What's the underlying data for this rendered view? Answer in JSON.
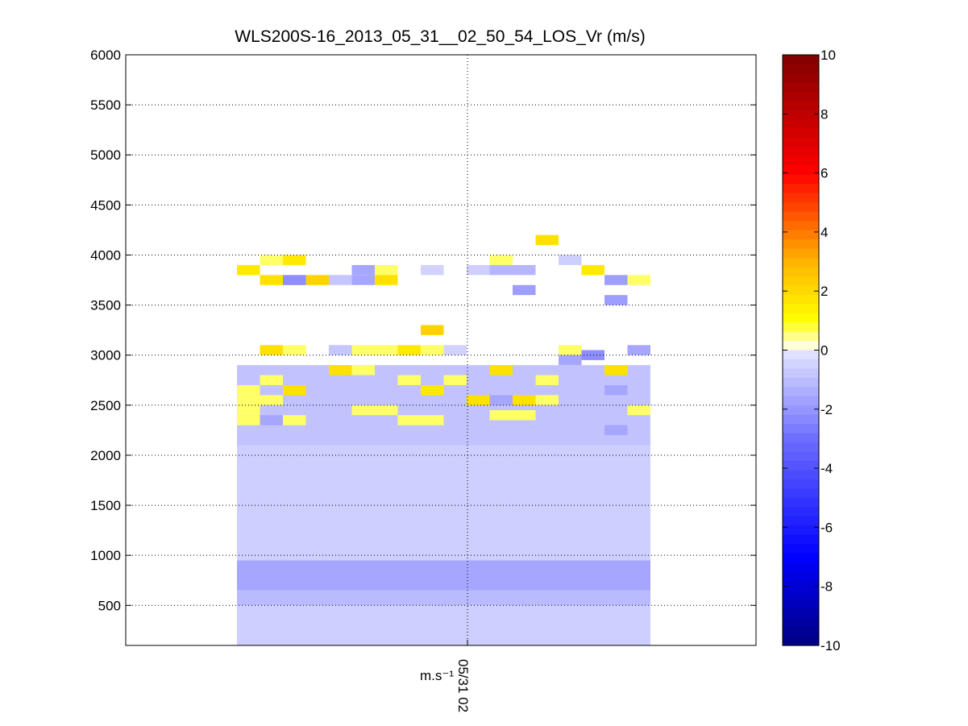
{
  "chart_data": {
    "type": "heatmap",
    "title": "WLS200S-16_2013_05_31__02_50_54_LOS_Vr (m/s)",
    "xlabel": "m.s⁻¹",
    "x_tick_label": "05/31 02",
    "ylabel": "",
    "ylim": [
      100,
      6000
    ],
    "y_ticks": [
      500,
      1000,
      1500,
      2000,
      2500,
      3000,
      3500,
      4000,
      4500,
      5000,
      5500,
      6000
    ],
    "grid": true,
    "colorbar": {
      "colormap": "blue-white-yellow-red",
      "clim": [
        -10,
        10
      ],
      "ticks": [
        -10,
        -8,
        -6,
        -4,
        -2,
        0,
        2,
        4,
        6,
        8,
        10
      ],
      "placement": "right"
    },
    "columns": 18,
    "layers": [
      {
        "from": 100,
        "to": 500,
        "value": -0.6
      },
      {
        "from": 500,
        "to": 650,
        "value": -1.1
      },
      {
        "from": 650,
        "to": 950,
        "value": -1.6
      },
      {
        "from": 950,
        "to": 2100,
        "value": -0.6
      },
      {
        "from": 2100,
        "to": 2900,
        "value": -0.9
      }
    ],
    "cells": [
      {
        "col": 0,
        "z": 3850,
        "value": 1.6
      },
      {
        "col": 2,
        "z": 3950,
        "value": 1.6
      },
      {
        "col": 2,
        "z": 3750,
        "value": 1.8
      },
      {
        "col": 1,
        "z": 3950,
        "value": 0.6
      },
      {
        "col": 1,
        "z": 3750,
        "value": 1.8
      },
      {
        "col": 2,
        "z": 3750,
        "value": -2.2
      },
      {
        "col": 3,
        "z": 3750,
        "value": 2.2
      },
      {
        "col": 4,
        "z": 3750,
        "value": -0.8
      },
      {
        "col": 5,
        "z": 3850,
        "value": -1.6
      },
      {
        "col": 5,
        "z": 3750,
        "value": -1.6
      },
      {
        "col": 6,
        "z": 3850,
        "value": 0.6
      },
      {
        "col": 6,
        "z": 3750,
        "value": 1.8
      },
      {
        "col": 8,
        "z": 3850,
        "value": -0.5
      },
      {
        "col": 10,
        "z": 3850,
        "value": -0.6
      },
      {
        "col": 11,
        "z": 3950,
        "value": 0.6
      },
      {
        "col": 11,
        "z": 3850,
        "value": -1.2
      },
      {
        "col": 12,
        "z": 3850,
        "value": -1.2
      },
      {
        "col": 12,
        "z": 3650,
        "value": -1.8
      },
      {
        "col": 13,
        "z": 4150,
        "value": 1.8
      },
      {
        "col": 14,
        "z": 3950,
        "value": -0.6
      },
      {
        "col": 15,
        "z": 3850,
        "value": 1.6
      },
      {
        "col": 16,
        "z": 3750,
        "value": -1.8
      },
      {
        "col": 16,
        "z": 3550,
        "value": -1.8
      },
      {
        "col": 17,
        "z": 3750,
        "value": 0.6
      },
      {
        "col": 8,
        "z": 3250,
        "value": 2.2
      },
      {
        "col": 1,
        "z": 3050,
        "value": 1.8
      },
      {
        "col": 2,
        "z": 3050,
        "value": 0.6
      },
      {
        "col": 4,
        "z": 3050,
        "value": -0.8
      },
      {
        "col": 5,
        "z": 3050,
        "value": 0.6
      },
      {
        "col": 6,
        "z": 3050,
        "value": 0.6
      },
      {
        "col": 7,
        "z": 3050,
        "value": 1.6
      },
      {
        "col": 8,
        "z": 3050,
        "value": 0.6
      },
      {
        "col": 9,
        "z": 3050,
        "value": -0.5
      },
      {
        "col": 14,
        "z": 3050,
        "value": 0.6
      },
      {
        "col": 15,
        "z": 3000,
        "value": -2.2
      },
      {
        "col": 14,
        "z": 2950,
        "value": -1.6
      },
      {
        "col": 17,
        "z": 3050,
        "value": -1.6
      },
      {
        "col": 1,
        "z": 2750,
        "value": 0.6
      },
      {
        "col": 2,
        "z": 2650,
        "value": 1.8
      },
      {
        "col": 0,
        "z": 2650,
        "value": 0.6
      },
      {
        "col": 0,
        "z": 2550,
        "value": 0.6
      },
      {
        "col": 0,
        "z": 2450,
        "value": 0.6
      },
      {
        "col": 0,
        "z": 2350,
        "value": 0.6
      },
      {
        "col": 1,
        "z": 2550,
        "value": 0.6
      },
      {
        "col": 1,
        "z": 2350,
        "value": -1.6
      },
      {
        "col": 2,
        "z": 2350,
        "value": 0.6
      },
      {
        "col": 4,
        "z": 2850,
        "value": 1.8
      },
      {
        "col": 5,
        "z": 2850,
        "value": 0.6
      },
      {
        "col": 7,
        "z": 2750,
        "value": 0.6
      },
      {
        "col": 8,
        "z": 2650,
        "value": 1.6
      },
      {
        "col": 9,
        "z": 2750,
        "value": 0.6
      },
      {
        "col": 10,
        "z": 2550,
        "value": 1.8
      },
      {
        "col": 11,
        "z": 2850,
        "value": 1.8
      },
      {
        "col": 11,
        "z": 2550,
        "value": -1.6
      },
      {
        "col": 12,
        "z": 2550,
        "value": 1.8
      },
      {
        "col": 13,
        "z": 2750,
        "value": 0.6
      },
      {
        "col": 13,
        "z": 2550,
        "value": 0.6
      },
      {
        "col": 16,
        "z": 2850,
        "value": 1.8
      },
      {
        "col": 17,
        "z": 2450,
        "value": 0.6
      },
      {
        "col": 5,
        "z": 2450,
        "value": 0.6
      },
      {
        "col": 6,
        "z": 2450,
        "value": 0.6
      },
      {
        "col": 7,
        "z": 2350,
        "value": 0.6
      },
      {
        "col": 8,
        "z": 2350,
        "value": 0.6
      },
      {
        "col": 11,
        "z": 2400,
        "value": 0.6
      },
      {
        "col": 12,
        "z": 2400,
        "value": 0.6
      },
      {
        "col": 16,
        "z": 2650,
        "value": -1.6
      },
      {
        "col": 16,
        "z": 2250,
        "value": -1.6
      }
    ]
  }
}
